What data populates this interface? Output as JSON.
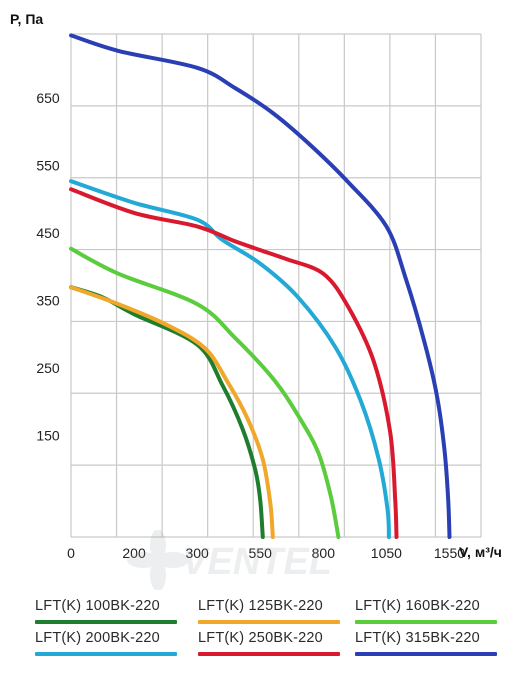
{
  "chart_data": {
    "type": "line",
    "ylabel": "P, Па",
    "xlabel": "V, м³/ч",
    "x_ticks": [
      0,
      200,
      300,
      550,
      800,
      1050,
      1550
    ],
    "y_ticks": [
      150,
      250,
      350,
      450,
      550,
      650
    ],
    "grid": true,
    "legend_position": "bottom",
    "watermark": "VENTEL",
    "series": [
      {
        "name": "LFT(K) 100BK-220",
        "color": "#1e7d2e",
        "x": [
          0,
          100,
          200,
          300,
          400,
          480,
          530,
          550,
          560
        ],
        "y": [
          370,
          355,
          330,
          285,
          225,
          160,
          100,
          55,
          0
        ]
      },
      {
        "name": "LFT(K) 125BK-220",
        "color": "#f0a72a",
        "x": [
          0,
          150,
          250,
          330,
          420,
          500,
          560,
          590,
          600
        ],
        "y": [
          370,
          345,
          315,
          280,
          230,
          175,
          115,
          50,
          0
        ]
      },
      {
        "name": "LFT(K) 160BK-220",
        "color": "#5bcc3e",
        "x": [
          0,
          150,
          300,
          450,
          600,
          700,
          780,
          830,
          860
        ],
        "y": [
          427,
          390,
          345,
          295,
          235,
          180,
          125,
          60,
          0
        ]
      },
      {
        "name": "LFT(K) 200BK-220",
        "color": "#22a9d6",
        "x": [
          0,
          200,
          300,
          400,
          550,
          700,
          850,
          950,
          1020,
          1060,
          1070
        ],
        "y": [
          527,
          495,
          470,
          440,
          405,
          355,
          280,
          200,
          115,
          40,
          0
        ]
      },
      {
        "name": "LFT(K) 250BK-220",
        "color": "#d8192e",
        "x": [
          0,
          200,
          300,
          450,
          550,
          650,
          800,
          900,
          1000,
          1080,
          1120,
          1130
        ],
        "y": [
          515,
          480,
          460,
          438,
          425,
          412,
          390,
          340,
          260,
          155,
          55,
          0
        ]
      },
      {
        "name": "LFT(K) 315BK-220",
        "color": "#2b3fb5",
        "x": [
          0,
          150,
          300,
          450,
          600,
          750,
          900,
          1050,
          1200,
          1350,
          1450,
          1510,
          1540,
          1550
        ],
        "y": [
          743,
          720,
          695,
          665,
          628,
          580,
          525,
          460,
          385,
          290,
          210,
          130,
          55,
          0
        ]
      }
    ]
  }
}
